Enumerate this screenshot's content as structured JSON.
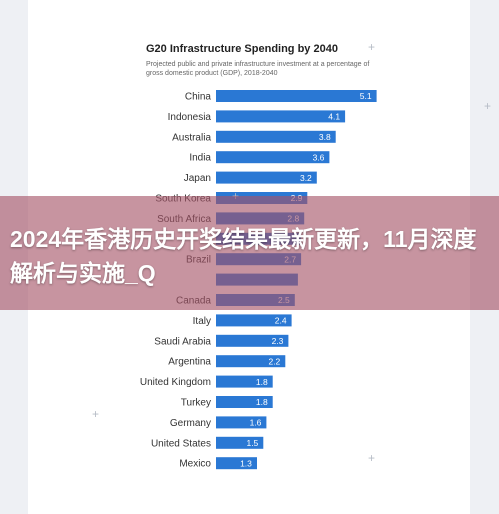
{
  "page": {
    "headline": "2024年香港历史开奖结果最新更新，11月深度解析与实施_Q",
    "overlay_color": "#a45266"
  },
  "chart_data": {
    "type": "bar",
    "orientation": "horizontal",
    "title": "G20 Infrastructure Spending by 2040",
    "subtitle": "Projected public and private infrastructure investment at a percentage of gross domestic product (GDP), 2018-2040",
    "categories": [
      "China",
      "Indonesia",
      "Australia",
      "India",
      "Japan",
      "South Korea",
      "South Africa",
      "",
      "Brazil",
      "",
      "Canada",
      "Italy",
      "Saudi Arabia",
      "Argentina",
      "United Kingdom",
      "Turkey",
      "Germany",
      "United States",
      "Mexico"
    ],
    "values": [
      5.1,
      4.1,
      3.8,
      3.6,
      3.2,
      2.9,
      2.8,
      2.7,
      2.7,
      2.6,
      2.5,
      2.4,
      2.3,
      2.2,
      1.8,
      1.8,
      1.6,
      1.5,
      1.3
    ],
    "value_labels": [
      "5.1",
      "4.1",
      "3.8",
      "3.6",
      "3.2",
      "2.9",
      "2.8",
      "",
      "2.7",
      "",
      "2.5",
      "2.4",
      "2.3",
      "2.2",
      "1.8",
      "1.8",
      "1.6",
      "1.5",
      "1.3"
    ],
    "bar_color": "#2a78d4",
    "label_color": "#ffffff",
    "grid": false,
    "legend": "none"
  }
}
